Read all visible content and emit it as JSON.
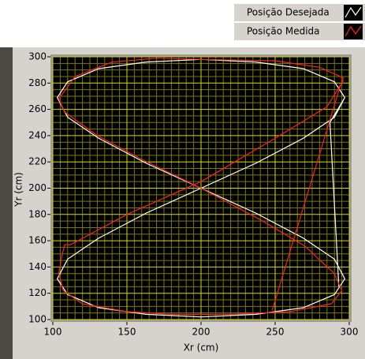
{
  "chart_data": {
    "type": "line",
    "xlabel": "Xr (cm)",
    "ylabel": "Yr (cm)",
    "xlim": [
      100,
      300
    ],
    "xticks": [
      100,
      150,
      200,
      250,
      300
    ],
    "ylim": [
      100,
      300
    ],
    "yticks": [
      100,
      120,
      140,
      160,
      180,
      200,
      220,
      240,
      260,
      280,
      300
    ],
    "grid": true,
    "legend": "top-right",
    "series": [
      {
        "name": "Posição Desejada",
        "color": "#ffffff",
        "x": [
          293,
          287,
          297,
          290,
          269,
          237,
          200,
          163,
          131,
          110,
          103,
          110,
          131,
          163,
          200,
          237,
          269,
          290,
          297,
          290,
          269,
          237,
          200,
          163,
          131,
          110,
          103,
          110,
          131,
          163,
          200,
          237,
          269,
          290,
          297
        ],
        "values": [
          125,
          250,
          269,
          281,
          291,
          296,
          298,
          296,
          291,
          281,
          269,
          254,
          238,
          219,
          200,
          181,
          162,
          146,
          131,
          119,
          109,
          104,
          102,
          104,
          109,
          119,
          131,
          146,
          162,
          181,
          200,
          219,
          238,
          254,
          269
        ]
      },
      {
        "name": "Posição Medida",
        "color": "#ff2020",
        "x": [
          248,
          294,
          296,
          280,
          250,
          200,
          170,
          140,
          115,
          104,
          108,
          130,
          160,
          200,
          240,
          270,
          290,
          295,
          288,
          260,
          220,
          180,
          150,
          120,
          107,
          104,
          106,
          108,
          112,
          150,
          200,
          250,
          285,
          296
        ],
        "values": [
          107,
          278,
          284,
          292,
          297,
          298,
          299,
          296,
          285,
          268,
          258,
          240,
          222,
          200,
          176,
          156,
          135,
          122,
          112,
          106,
          104,
          104,
          106,
          112,
          122,
          135,
          148,
          157,
          157,
          180,
          205,
          238,
          262,
          282
        ]
      }
    ]
  }
}
